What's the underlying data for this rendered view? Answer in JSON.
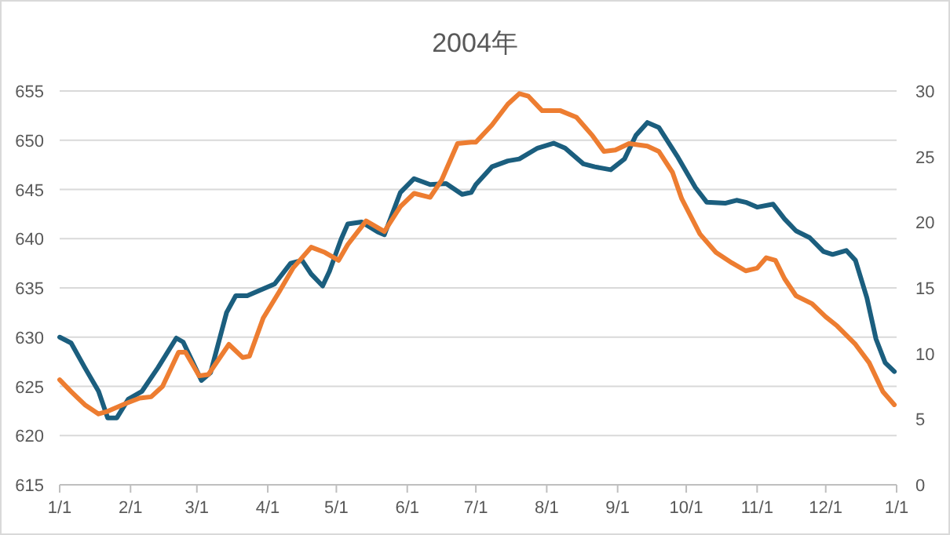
{
  "chart_data": {
    "type": "line",
    "title": "2004年",
    "grid": "y",
    "xlim": [
      "2004-01-01",
      "2005-01-01"
    ],
    "xticks": [
      {
        "value": "2004-01-01",
        "label": "1/1"
      },
      {
        "value": "2004-02-01",
        "label": "2/1"
      },
      {
        "value": "2004-03-01",
        "label": "3/1"
      },
      {
        "value": "2004-04-01",
        "label": "4/1"
      },
      {
        "value": "2004-05-01",
        "label": "5/1"
      },
      {
        "value": "2004-06-01",
        "label": "6/1"
      },
      {
        "value": "2004-07-01",
        "label": "7/1"
      },
      {
        "value": "2004-08-01",
        "label": "8/1"
      },
      {
        "value": "2004-09-01",
        "label": "9/1"
      },
      {
        "value": "2004-10-01",
        "label": "10/1"
      },
      {
        "value": "2004-11-01",
        "label": "11/1"
      },
      {
        "value": "2004-12-01",
        "label": "12/1"
      },
      {
        "value": "2005-01-01",
        "label": "1/1"
      }
    ],
    "ylim": [
      615,
      655
    ],
    "yticks": [
      615,
      620,
      625,
      630,
      635,
      640,
      645,
      650,
      655
    ],
    "y2lim": [
      0,
      30
    ],
    "y2ticks": [
      0,
      5,
      10,
      15,
      20,
      25,
      30
    ],
    "series": [
      {
        "color": "#1b5e7e",
        "axis": "y",
        "x": [
          "2004-01-01",
          "2004-01-06",
          "2004-01-12",
          "2004-01-18",
          "2004-01-22",
          "2004-01-26",
          "2004-01-31",
          "2004-02-06",
          "2004-02-13",
          "2004-02-21",
          "2004-02-24",
          "2004-03-03",
          "2004-03-07",
          "2004-03-14",
          "2004-03-18",
          "2004-03-23",
          "2004-03-29",
          "2004-04-04",
          "2004-04-11",
          "2004-04-16",
          "2004-04-20",
          "2004-04-25",
          "2004-04-28",
          "2004-05-03",
          "2004-05-06",
          "2004-05-12",
          "2004-05-19",
          "2004-05-22",
          "2004-05-29",
          "2004-06-04",
          "2004-06-11",
          "2004-06-18",
          "2004-06-25",
          "2004-06-29",
          "2004-07-01",
          "2004-07-08",
          "2004-07-15",
          "2004-07-20",
          "2004-07-28",
          "2004-08-04",
          "2004-08-09",
          "2004-08-17",
          "2004-08-22",
          "2004-08-29",
          "2004-09-04",
          "2004-09-09",
          "2004-09-14",
          "2004-09-19",
          "2004-09-27",
          "2004-10-05",
          "2004-10-10",
          "2004-10-18",
          "2004-10-23",
          "2004-10-27",
          "2004-11-01",
          "2004-11-08",
          "2004-11-13",
          "2004-11-18",
          "2004-11-24",
          "2004-11-30",
          "2004-12-04",
          "2004-12-10",
          "2004-12-14",
          "2004-12-19",
          "2004-12-23",
          "2004-12-27",
          "2004-12-31"
        ],
        "values": [
          630.0,
          629.4,
          626.9,
          624.5,
          621.8,
          621.8,
          623.7,
          624.5,
          626.9,
          629.9,
          629.5,
          625.6,
          626.4,
          632.5,
          634.2,
          634.2,
          634.8,
          635.4,
          637.5,
          637.8,
          636.4,
          635.2,
          636.7,
          639.9,
          641.5,
          641.7,
          640.7,
          640.4,
          644.7,
          646.1,
          645.5,
          645.6,
          644.5,
          644.7,
          645.5,
          647.3,
          647.9,
          648.1,
          649.2,
          649.7,
          649.2,
          647.6,
          647.3,
          647.0,
          648.1,
          650.5,
          651.8,
          651.3,
          648.4,
          645.2,
          643.7,
          643.6,
          643.9,
          643.7,
          643.2,
          643.5,
          642.0,
          640.8,
          640.1,
          638.7,
          638.4,
          638.8,
          637.8,
          634.0,
          629.8,
          627.4,
          626.5
        ]
      },
      {
        "color": "#ed7d31",
        "axis": "y2",
        "x": [
          "2004-01-01",
          "2004-01-06",
          "2004-01-12",
          "2004-01-18",
          "2004-01-22",
          "2004-01-30",
          "2004-02-05",
          "2004-02-10",
          "2004-02-15",
          "2004-02-22",
          "2004-02-25",
          "2004-03-02",
          "2004-03-06",
          "2004-03-15",
          "2004-03-21",
          "2004-03-24",
          "2004-03-30",
          "2004-04-06",
          "2004-04-12",
          "2004-04-20",
          "2004-04-26",
          "2004-05-02",
          "2004-05-06",
          "2004-05-14",
          "2004-05-22",
          "2004-05-29",
          "2004-06-04",
          "2004-06-11",
          "2004-06-16",
          "2004-06-23",
          "2004-06-29",
          "2004-07-01",
          "2004-07-08",
          "2004-07-15",
          "2004-07-20",
          "2004-07-24",
          "2004-07-30",
          "2004-08-07",
          "2004-08-14",
          "2004-08-21",
          "2004-08-26",
          "2004-08-31",
          "2004-09-06",
          "2004-09-14",
          "2004-09-19",
          "2004-09-25",
          "2004-09-29",
          "2004-10-07",
          "2004-10-14",
          "2004-10-21",
          "2004-10-27",
          "2004-11-01",
          "2004-11-05",
          "2004-11-09",
          "2004-11-13",
          "2004-11-18",
          "2004-11-25",
          "2004-12-01",
          "2004-12-06",
          "2004-12-14",
          "2004-12-20",
          "2004-12-26",
          "2004-12-31"
        ],
        "values": [
          8.0,
          7.1,
          6.1,
          5.4,
          5.6,
          6.2,
          6.6,
          6.7,
          7.5,
          10.1,
          10.1,
          8.3,
          8.4,
          10.7,
          9.7,
          9.8,
          12.7,
          14.7,
          16.5,
          18.1,
          17.7,
          17.1,
          18.3,
          20.1,
          19.3,
          21.2,
          22.2,
          21.9,
          23.2,
          26.0,
          26.1,
          26.1,
          27.4,
          29.0,
          29.8,
          29.6,
          28.5,
          28.5,
          28.0,
          26.6,
          25.4,
          25.5,
          26.0,
          25.8,
          25.4,
          23.8,
          21.8,
          19.1,
          17.7,
          16.9,
          16.3,
          16.5,
          17.3,
          17.1,
          15.7,
          14.4,
          13.8,
          12.8,
          12.1,
          10.7,
          9.3,
          7.1,
          6.1
        ]
      }
    ]
  }
}
